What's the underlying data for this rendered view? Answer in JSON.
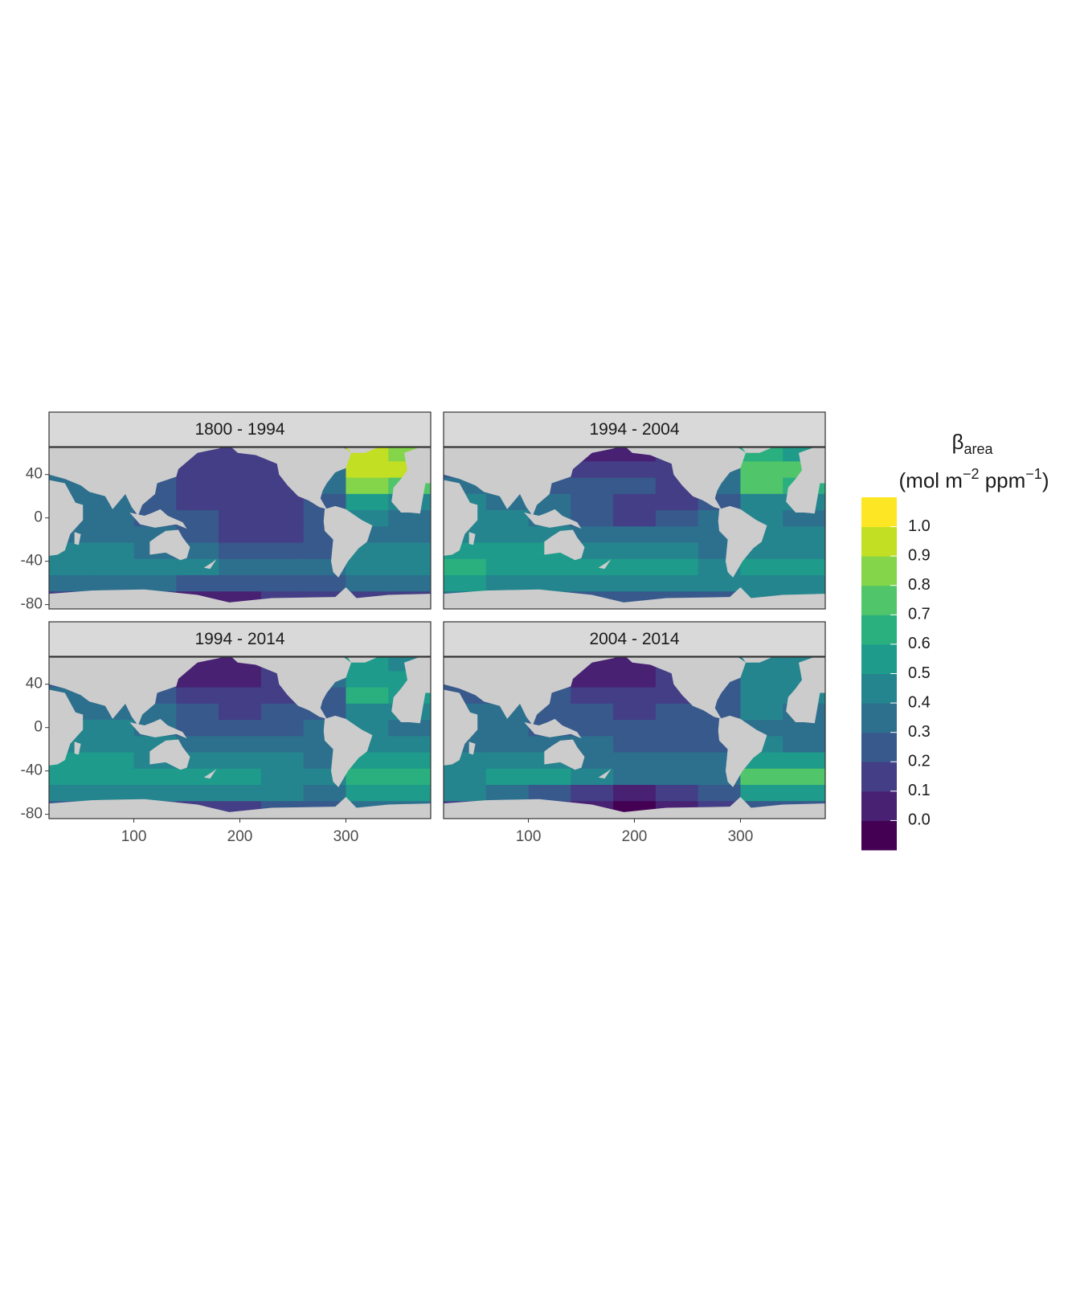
{
  "chart_data": {
    "type": "heatmap",
    "xlim": [
      20,
      380
    ],
    "ylim": [
      -84,
      65
    ],
    "xticks": [
      100,
      200,
      300
    ],
    "yticks": [
      -80,
      -40,
      0,
      40
    ],
    "lon": [
      40,
      80,
      120,
      160,
      200,
      240,
      280,
      320,
      360
    ],
    "lat": [
      -75,
      -60,
      -45,
      -30,
      -15,
      0,
      15,
      30,
      45,
      60
    ],
    "panels": [
      {
        "title": "1800 - 1994",
        "values": [
          [
            0.15,
            0.15,
            0.15,
            0.05,
            0.05,
            0.15,
            0.15,
            0.15,
            0.15
          ],
          [
            0.35,
            0.35,
            0.35,
            0.25,
            0.25,
            0.25,
            0.25,
            0.35,
            0.35
          ],
          [
            0.45,
            0.45,
            0.45,
            0.45,
            0.35,
            0.35,
            0.35,
            0.45,
            0.45
          ],
          [
            0.45,
            0.45,
            0.35,
            0.35,
            0.25,
            0.25,
            0.25,
            0.45,
            0.45
          ],
          [
            0.35,
            0.35,
            0.35,
            0.25,
            0.15,
            0.15,
            0.25,
            0.35,
            0.35
          ],
          [
            0.35,
            0.35,
            0.25,
            0.25,
            0.15,
            0.15,
            0.25,
            0.45,
            0.35
          ],
          [
            0.35,
            0.35,
            0.25,
            0.15,
            0.15,
            0.15,
            0.25,
            0.55,
            0.45
          ],
          [
            0.35,
            0.35,
            0.25,
            0.15,
            0.15,
            0.15,
            0.35,
            0.85,
            0.75
          ],
          [
            0.35,
            0.35,
            0.25,
            0.15,
            0.15,
            0.15,
            0.35,
            0.95,
            0.95
          ],
          [
            0.35,
            0.35,
            0.25,
            0.15,
            0.15,
            0.15,
            0.35,
            0.95,
            0.85
          ]
        ]
      },
      {
        "title": "1994 - 2004",
        "values": [
          [
            0.35,
            0.35,
            0.35,
            0.25,
            0.25,
            0.25,
            0.25,
            0.45,
            0.45
          ],
          [
            0.55,
            0.45,
            0.45,
            0.45,
            0.45,
            0.45,
            0.45,
            0.45,
            0.45
          ],
          [
            0.65,
            0.55,
            0.55,
            0.55,
            0.55,
            0.55,
            0.45,
            0.55,
            0.55
          ],
          [
            0.55,
            0.55,
            0.55,
            0.45,
            0.45,
            0.45,
            0.35,
            0.45,
            0.45
          ],
          [
            0.45,
            0.45,
            0.45,
            0.35,
            0.35,
            0.35,
            0.35,
            0.45,
            0.45
          ],
          [
            0.45,
            0.45,
            0.35,
            0.25,
            0.15,
            0.25,
            0.35,
            0.45,
            0.35
          ],
          [
            0.45,
            0.35,
            0.35,
            0.25,
            0.15,
            0.15,
            0.25,
            0.45,
            0.45
          ],
          [
            0.35,
            0.35,
            0.25,
            0.25,
            0.25,
            0.15,
            0.35,
            0.75,
            0.65
          ],
          [
            0.25,
            0.25,
            0.25,
            0.15,
            0.15,
            0.15,
            0.35,
            0.75,
            0.75
          ],
          [
            0.25,
            0.25,
            0.15,
            0.05,
            0.05,
            0.15,
            0.35,
            0.65,
            0.55
          ]
        ]
      },
      {
        "title": "1994 - 2014",
        "values": [
          [
            0.25,
            0.25,
            0.25,
            0.15,
            0.15,
            0.25,
            0.25,
            0.35,
            0.35
          ],
          [
            0.45,
            0.45,
            0.45,
            0.45,
            0.45,
            0.45,
            0.35,
            0.55,
            0.55
          ],
          [
            0.55,
            0.55,
            0.55,
            0.55,
            0.55,
            0.45,
            0.45,
            0.65,
            0.65
          ],
          [
            0.55,
            0.55,
            0.45,
            0.45,
            0.45,
            0.45,
            0.35,
            0.55,
            0.55
          ],
          [
            0.45,
            0.45,
            0.45,
            0.35,
            0.35,
            0.35,
            0.35,
            0.45,
            0.45
          ],
          [
            0.45,
            0.45,
            0.35,
            0.25,
            0.25,
            0.25,
            0.35,
            0.45,
            0.35
          ],
          [
            0.35,
            0.35,
            0.35,
            0.25,
            0.15,
            0.25,
            0.25,
            0.45,
            0.45
          ],
          [
            0.35,
            0.35,
            0.25,
            0.15,
            0.15,
            0.15,
            0.25,
            0.65,
            0.55
          ],
          [
            0.25,
            0.25,
            0.15,
            0.05,
            0.05,
            0.15,
            0.35,
            0.55,
            0.55
          ],
          [
            0.25,
            0.25,
            0.15,
            0.05,
            0.05,
            0.15,
            0.35,
            0.55,
            0.45
          ]
        ]
      },
      {
        "title": "2004 - 2014",
        "values": [
          [
            0.15,
            0.15,
            0.15,
            0.05,
            -0.05,
            0.05,
            0.15,
            0.25,
            0.25
          ],
          [
            0.45,
            0.35,
            0.25,
            0.15,
            0.05,
            0.15,
            0.25,
            0.55,
            0.55
          ],
          [
            0.45,
            0.55,
            0.55,
            0.45,
            0.35,
            0.35,
            0.35,
            0.75,
            0.75
          ],
          [
            0.45,
            0.45,
            0.45,
            0.35,
            0.35,
            0.35,
            0.35,
            0.55,
            0.55
          ],
          [
            0.35,
            0.35,
            0.35,
            0.35,
            0.25,
            0.25,
            0.25,
            0.45,
            0.35
          ],
          [
            0.35,
            0.35,
            0.25,
            0.25,
            0.25,
            0.25,
            0.25,
            0.35,
            0.35
          ],
          [
            0.35,
            0.35,
            0.25,
            0.25,
            0.15,
            0.25,
            0.25,
            0.45,
            0.35
          ],
          [
            0.25,
            0.25,
            0.25,
            0.15,
            0.15,
            0.15,
            0.25,
            0.45,
            0.45
          ],
          [
            0.25,
            0.25,
            0.15,
            0.05,
            0.05,
            0.15,
            0.25,
            0.45,
            0.45
          ],
          [
            0.25,
            0.25,
            0.15,
            0.05,
            0.05,
            0.15,
            0.25,
            0.45,
            0.45
          ]
        ]
      }
    ],
    "legend": {
      "title": [
        "β",
        "area",
        "(mol m",
        "−2",
        " ppm",
        "−1",
        ")"
      ],
      "limits": [
        -0.1,
        1.1
      ],
      "colors": [
        "#440154",
        "#482173",
        "#433e85",
        "#38598c",
        "#2d708e",
        "#25858e",
        "#1e9b8a",
        "#2ab07f",
        "#51c56a",
        "#85d54a",
        "#c2df23",
        "#fde725"
      ],
      "ticks": [
        {
          "value": 0,
          "label": "0.0"
        },
        0.1,
        0.2,
        0.3,
        0.4,
        0.5,
        0.6,
        0.7,
        0.8,
        0.9,
        {
          "value": 1,
          "label": "1.0"
        }
      ]
    }
  }
}
